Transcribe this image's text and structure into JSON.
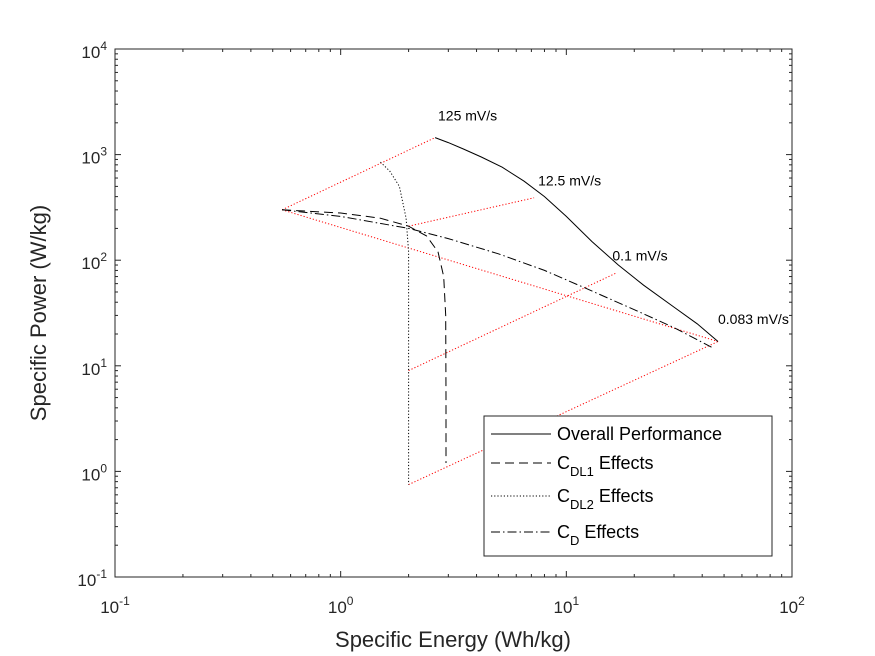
{
  "chart_data": {
    "type": "line",
    "xscale": "log",
    "yscale": "log",
    "xlabel": "Specific Energy (Wh/kg)",
    "ylabel": "Specific Power (W/kg)",
    "xlim": [
      0.1,
      100
    ],
    "ylim": [
      0.1,
      10000
    ],
    "x_ticks": [
      {
        "base": "10",
        "exp": "-1"
      },
      {
        "base": "10",
        "exp": "0"
      },
      {
        "base": "10",
        "exp": "1"
      },
      {
        "base": "10",
        "exp": "2"
      }
    ],
    "y_ticks": [
      {
        "base": "10",
        "exp": "-1"
      },
      {
        "base": "10",
        "exp": "0"
      },
      {
        "base": "10",
        "exp": "1"
      },
      {
        "base": "10",
        "exp": "2"
      },
      {
        "base": "10",
        "exp": "3"
      },
      {
        "base": "10",
        "exp": "4"
      }
    ],
    "grid": false,
    "legend_position": "bottom-right",
    "series": [
      {
        "name": "Overall Performance",
        "style": "solid",
        "color": "#000000",
        "x": [
          2.62,
          3.0,
          3.5,
          4.2,
          5.2,
          6.5,
          8.0,
          10.0,
          13.0,
          17.0,
          22.0,
          30.0,
          38.0,
          47.0
        ],
        "y": [
          1450,
          1300,
          1130,
          950,
          760,
          560,
          400,
          260,
          150,
          90,
          58,
          36,
          25,
          17
        ]
      },
      {
        "name": "C",
        "sub": "DL1",
        "suffix": " Effects",
        "style": "dashed",
        "color": "#000000",
        "x": [
          0.55,
          1.0,
          1.5,
          2.0,
          2.4,
          2.7,
          2.86,
          2.92,
          2.93,
          2.93
        ],
        "y": [
          300,
          280,
          250,
          210,
          170,
          120,
          70,
          30,
          5,
          1.2
        ]
      },
      {
        "name": "C",
        "sub": "DL2",
        "suffix": " Effects",
        "style": "dotted",
        "color": "#000000",
        "x": [
          1.5,
          1.65,
          1.82,
          1.95,
          2.0,
          2.0,
          2.0,
          2.0
        ],
        "y": [
          850,
          700,
          500,
          250,
          120,
          40,
          5,
          0.75
        ]
      },
      {
        "name": "C",
        "sub": "D",
        "suffix": " Effects",
        "style": "dashdot",
        "color": "#000000",
        "x": [
          0.55,
          1.0,
          2.0,
          3.0,
          5.0,
          8.0,
          12.0,
          20.0,
          30.0,
          44.0
        ],
        "y": [
          300,
          260,
          200,
          160,
          115,
          80,
          55,
          34,
          23,
          15
        ]
      }
    ],
    "reference_lines": [
      {
        "color": "#ff0000",
        "style": "dotted",
        "x": [
          0.55,
          2.62
        ],
        "y": [
          300,
          1450
        ]
      },
      {
        "color": "#ff0000",
        "style": "dotted",
        "x": [
          0.55,
          47.0
        ],
        "y": [
          300,
          17
        ]
      },
      {
        "color": "#ff0000",
        "style": "dotted",
        "x": [
          2.0,
          7.2
        ],
        "y": [
          210,
          390
        ]
      },
      {
        "color": "#ff0000",
        "style": "dotted",
        "x": [
          2.0,
          16.5
        ],
        "y": [
          9,
          75
        ]
      },
      {
        "color": "#ff0000",
        "style": "dotted",
        "x": [
          2.0,
          47.0
        ],
        "y": [
          0.75,
          17
        ]
      }
    ],
    "annotations": [
      {
        "text": "125 mV/s",
        "x": 2.7,
        "y": 2100
      },
      {
        "text": "12.5 mV/s",
        "x": 7.5,
        "y": 510
      },
      {
        "text": "0.1 mV/s",
        "x": 16.0,
        "y": 99
      },
      {
        "text": "0.083 mV/s",
        "x": 47.0,
        "y": 25
      }
    ]
  }
}
